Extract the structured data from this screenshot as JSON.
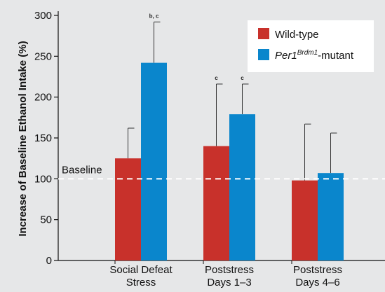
{
  "chart_data": {
    "type": "bar",
    "title": "",
    "ylabel": "Increase of Baseline Ethanol Intake (%)",
    "xlabel": "",
    "ylim": [
      0,
      300
    ],
    "yticks": [
      0,
      50,
      100,
      150,
      200,
      250,
      300
    ],
    "categories": [
      [
        "Social Defeat",
        "Stress"
      ],
      [
        "Poststress",
        "Days 1–3"
      ],
      [
        "Poststress",
        "Days 4–6"
      ]
    ],
    "series": [
      {
        "name": "Wild-type",
        "color": "#c8312b",
        "values": [
          125,
          140,
          98
        ],
        "error_upper": [
          162,
          216,
          167
        ],
        "annotations": [
          "",
          "c",
          ""
        ]
      },
      {
        "name_main": "Per1",
        "name_sup": "Brdm1",
        "name_suffix": "-mutant",
        "color": "#0a86cc",
        "values": [
          242,
          179,
          107
        ],
        "error_upper": [
          292,
          216,
          156
        ],
        "annotations": [
          "b, c",
          "c",
          ""
        ]
      }
    ],
    "baseline": {
      "label": "Baseline",
      "value": 100
    },
    "legend_position": "top-right",
    "grid": false
  }
}
